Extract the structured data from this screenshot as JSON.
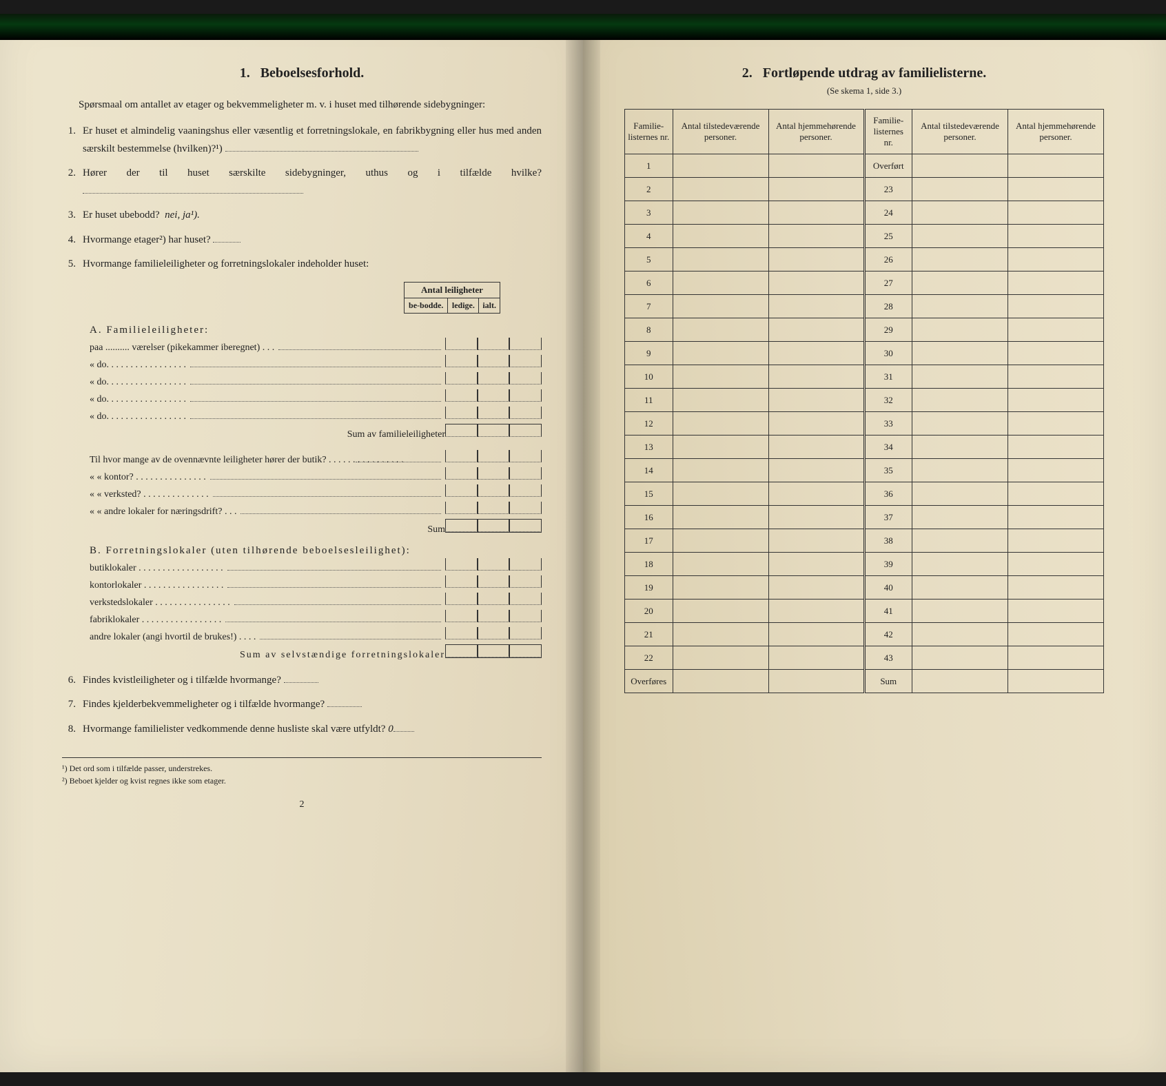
{
  "left": {
    "heading_num": "1.",
    "heading": "Beboelsesforhold.",
    "intro": "Spørsmaal om antallet av etager og bekvemmeligheter m. v. i huset med tilhørende sidebygninger:",
    "q1": "Er huset et almindelig vaaningshus eller væsentlig et forretningslokale, en fabrikbygning eller hus med anden særskilt bestemmelse (hvilken)?¹)",
    "q2": "Hører der til huset særskilte sidebygninger, uthus og i tilfælde hvilke?",
    "q3_pre": "Er huset ubebodd?",
    "q3_italic": "nei, ja¹).",
    "q4": "Hvormange etager²) har huset?",
    "q5": "Hvormange familieleiligheter og forretningslokaler indeholder huset:",
    "mini_head": "Antal leiligheter",
    "mini_sub1": "be-bodde.",
    "mini_sub2": "ledige.",
    "mini_sub3": "ialt.",
    "a_heading": "A. Familieleiligheter:",
    "a_line1": "paa .......... værelser (pikekammer iberegnet) . . .",
    "a_do": "«          do.     . . . . . . . . . . . . . . . .",
    "a_sum": "Sum av familieleiligheter",
    "til_line": "Til hvor mange av de ovennævnte leiligheter hører der butik? . . . . . . . . . . . . . . . .",
    "kontor": "«     «   kontor? . . . . . . . . . . . . . . .",
    "verksted": "«     «   verksted? . . . . . . . . . . . . . .",
    "andre": "«     «   andre lokaler for næringsdrift? . . .",
    "sum2": "Sum",
    "b_heading": "B. Forretningslokaler (uten tilhørende beboelsesleilighet):",
    "b1": "butiklokaler . . . . . . . . . . . . . . . . . .",
    "b2": "kontorlokaler . . . . . . . . . . . . . . . . .",
    "b3": "verkstedslokaler . . . . . . . . . . . . . . . .",
    "b4": "fabriklokaler . . . . . . . . . . . . . . . . .",
    "b5": "andre lokaler (angi hvortil de brukes!) . . . .",
    "b_sum": "Sum av selvstændige forretningslokaler",
    "q6": "Findes kvistleiligheter og i tilfælde hvormange?",
    "q7": "Findes kjelderbekvemmeligheter og i tilfælde hvormange?",
    "q8_pre": "Hvormange familielister vedkommende denne husliste skal være utfyldt?",
    "q8_val": "0",
    "fn1": "¹) Det ord som i tilfælde passer, understrekes.",
    "fn2": "²) Beboet kjelder og kvist regnes ikke som etager.",
    "page_num": "2"
  },
  "right": {
    "heading_num": "2.",
    "heading": "Fortløpende utdrag av familielisterne.",
    "sub": "(Se skema 1, side 3.)",
    "col1": "Familie-listernes nr.",
    "col2": "Antal tilstedeværende personer.",
    "col3": "Antal hjemmehørende personer.",
    "overfort": "Overført",
    "overfores": "Overføres",
    "sum": "Sum",
    "rows_left": [
      "1",
      "2",
      "3",
      "4",
      "5",
      "6",
      "7",
      "8",
      "9",
      "10",
      "11",
      "12",
      "13",
      "14",
      "15",
      "16",
      "17",
      "18",
      "19",
      "20",
      "21",
      "22"
    ],
    "rows_right": [
      "23",
      "24",
      "25",
      "26",
      "27",
      "28",
      "29",
      "30",
      "31",
      "32",
      "33",
      "34",
      "35",
      "36",
      "37",
      "38",
      "39",
      "40",
      "41",
      "42",
      "43"
    ]
  },
  "colors": {
    "text": "#222222",
    "paper": "#e8dfc6",
    "border": "#333333"
  }
}
